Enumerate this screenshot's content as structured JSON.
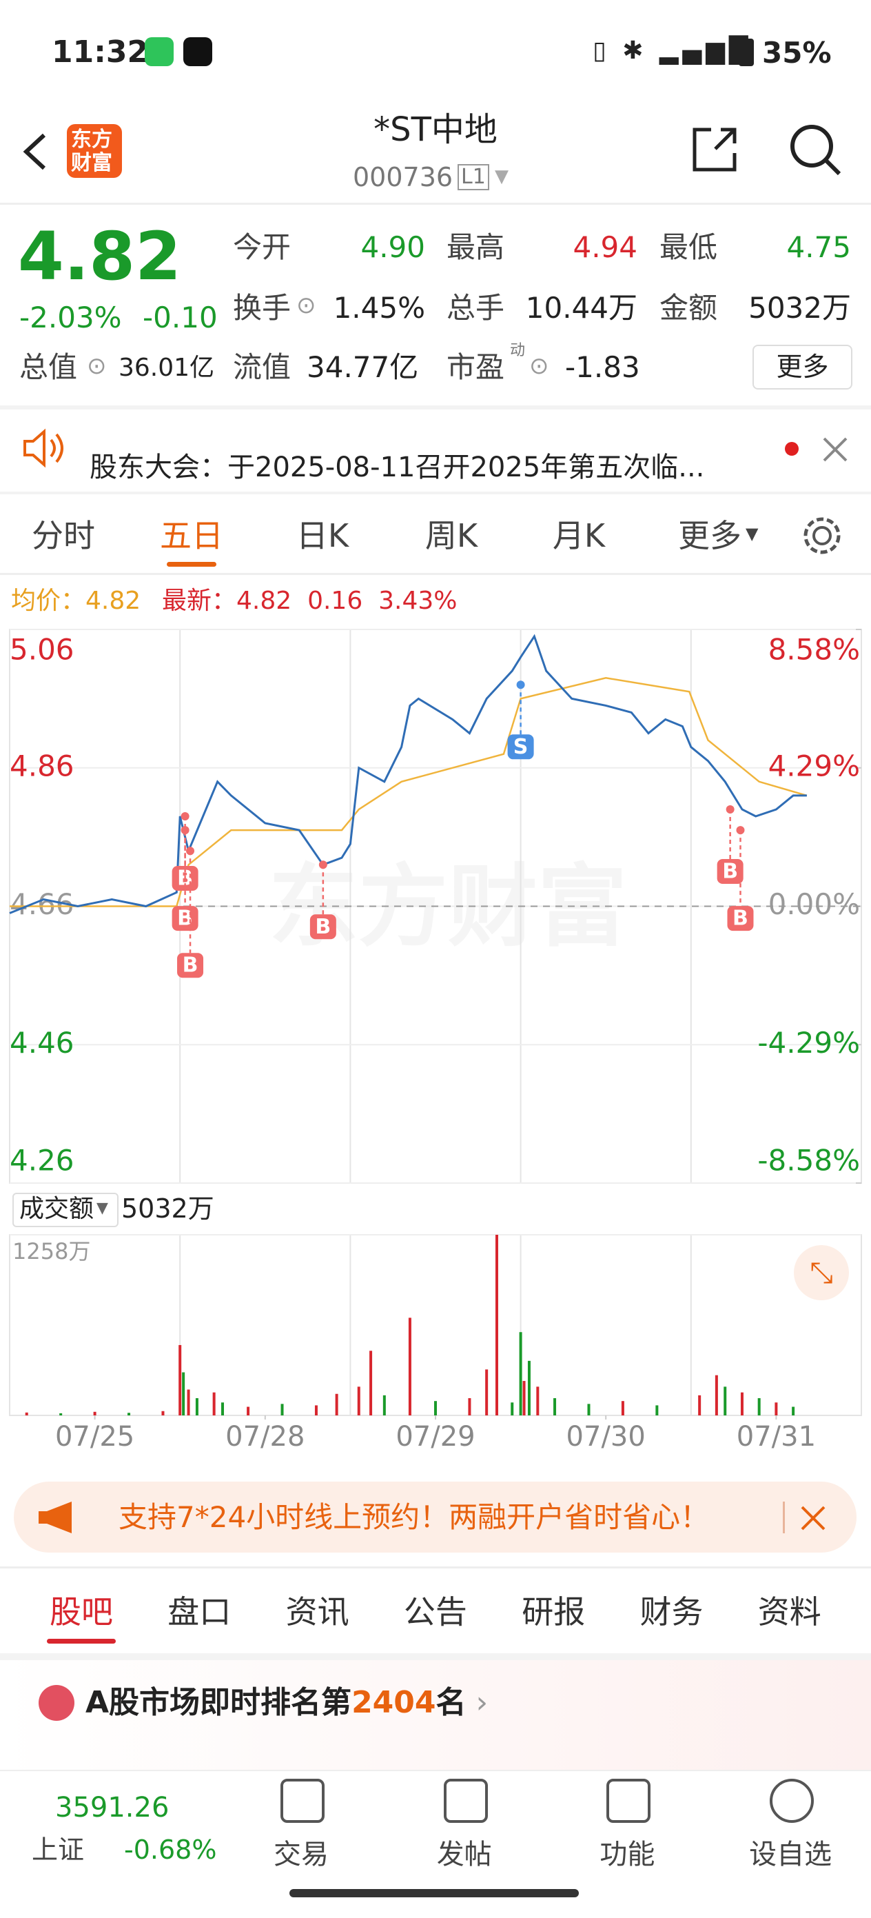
{
  "status_bar": {
    "time": "11:32",
    "battery": "35%"
  },
  "header": {
    "logo": [
      "东方",
      "财富"
    ],
    "title": "*ST中地",
    "code": "000736",
    "level": "L1"
  },
  "quote": {
    "price": "4.82",
    "change_pct": "-2.03%",
    "change": "-0.10",
    "open_label": "今开",
    "open": "4.90",
    "high_label": "最高",
    "high": "4.94",
    "low_label": "最低",
    "low": "4.75",
    "turnover_label": "换手",
    "turnover": "1.45%",
    "volume_label": "总手",
    "volume": "10.44万",
    "amount_label": "金额",
    "amount": "5032万",
    "mcap_label": "总值",
    "mcap": "36.01亿",
    "float_label": "流值",
    "float": "34.77亿",
    "pe_label": "市盈",
    "pe_sup": "动",
    "pe": "-1.83",
    "more": "更多"
  },
  "notice": {
    "text": "股东大会：于2025-08-11召开2025年第五次临..."
  },
  "period_tabs": {
    "items": [
      "分时",
      "五日",
      "日K",
      "周K",
      "月K",
      "更多"
    ],
    "active": 1
  },
  "chart_info": {
    "avg_label": "均价：",
    "avg": "4.82",
    "last_label": "最新：",
    "last": "4.82",
    "change": "0.16",
    "change_pct": "3.43%"
  },
  "watermark": "东方财富",
  "chart_data": [
    {
      "type": "line",
      "xlim": [
        0,
        5
      ],
      "ylim": [
        4.26,
        5.06
      ],
      "yticks": [
        5.06,
        4.86,
        4.66,
        4.46,
        4.26
      ],
      "y2lim": [
        -8.58,
        8.58
      ],
      "y2ticks": [
        {
          "value": 8.58,
          "label": "8.58%"
        },
        {
          "value": 4.29,
          "label": "4.29%"
        },
        {
          "value": 0,
          "label": "0.00%"
        },
        {
          "value": -4.29,
          "label": "-4.29%"
        },
        {
          "value": -8.58,
          "label": "-8.58%"
        }
      ],
      "prev_close": 4.66,
      "series": [
        {
          "color": "#2f6db5",
          "x": [
            0,
            0.2,
            0.4,
            0.6,
            0.8,
            0.98,
            1.0,
            1.05,
            1.22,
            1.3,
            1.5,
            1.7,
            1.84,
            1.95,
            2.0,
            2.05,
            2.2,
            2.3,
            2.35,
            2.4,
            2.6,
            2.7,
            2.8,
            2.95,
            3.0,
            3.08,
            3.15,
            3.3,
            3.5,
            3.65,
            3.75,
            3.85,
            3.95,
            4.0,
            4.1,
            4.2,
            4.3,
            4.38,
            4.5,
            4.6,
            4.68
          ],
          "values": [
            4.65,
            4.67,
            4.66,
            4.67,
            4.66,
            4.68,
            4.79,
            4.74,
            4.84,
            4.82,
            4.78,
            4.77,
            4.72,
            4.73,
            4.75,
            4.86,
            4.84,
            4.89,
            4.95,
            4.96,
            4.93,
            4.91,
            4.96,
            5.0,
            5.02,
            5.05,
            5.0,
            4.96,
            4.95,
            4.94,
            4.91,
            4.93,
            4.92,
            4.89,
            4.87,
            4.84,
            4.8,
            4.79,
            4.8,
            4.82,
            4.82
          ]
        },
        {
          "color": "#f0b43c",
          "x": [
            0,
            0.98,
            1.05,
            1.3,
            1.95,
            2.05,
            2.3,
            2.9,
            3.0,
            3.5,
            3.99,
            4.1,
            4.4,
            4.68
          ],
          "values": [
            4.66,
            4.66,
            4.72,
            4.77,
            4.77,
            4.8,
            4.84,
            4.88,
            4.96,
            4.99,
            4.97,
            4.9,
            4.84,
            4.82
          ]
        }
      ],
      "trades": [
        {
          "label": "B",
          "x": 1.03,
          "price": 4.79
        },
        {
          "label": "B",
          "x": 1.03,
          "price": 4.77
        },
        {
          "label": "B",
          "x": 1.06,
          "price": 4.74
        },
        {
          "label": "B",
          "x": 1.84,
          "price": 4.72
        },
        {
          "label": "S",
          "x": 3.0,
          "price": 4.98
        },
        {
          "label": "B",
          "x": 4.23,
          "price": 4.8
        },
        {
          "label": "B",
          "x": 4.29,
          "price": 4.77
        }
      ]
    },
    {
      "type": "bar",
      "label": "成交额",
      "total": "5032万",
      "xlim": [
        0,
        5
      ],
      "ylim": [
        0,
        1258
      ],
      "yticks": [
        {
          "value": 1258,
          "label": "1258万"
        }
      ],
      "xticks": [
        {
          "value": 0.5,
          "label": "07/25"
        },
        {
          "value": 1.5,
          "label": "07/28"
        },
        {
          "value": 2.5,
          "label": "07/29"
        },
        {
          "value": 3.5,
          "label": "07/30"
        },
        {
          "value": 4.5,
          "label": "07/31"
        }
      ],
      "x": [
        0.1,
        0.3,
        0.5,
        0.7,
        0.9,
        1.0,
        1.02,
        1.05,
        1.1,
        1.2,
        1.25,
        1.4,
        1.6,
        1.8,
        1.92,
        2.05,
        2.12,
        2.2,
        2.35,
        2.5,
        2.7,
        2.8,
        2.86,
        2.95,
        3.0,
        3.02,
        3.05,
        3.1,
        3.2,
        3.4,
        3.6,
        3.8,
        4.05,
        4.15,
        4.2,
        4.3,
        4.4,
        4.5,
        4.6
      ],
      "values": [
        20,
        15,
        25,
        18,
        30,
        490,
        300,
        180,
        120,
        160,
        90,
        60,
        80,
        70,
        150,
        200,
        450,
        140,
        680,
        100,
        120,
        320,
        1258,
        90,
        580,
        240,
        380,
        200,
        120,
        80,
        100,
        70,
        140,
        280,
        200,
        160,
        120,
        90,
        60
      ],
      "colors": [
        "#d8262e",
        "#1a9a2a",
        "#d8262e",
        "#1a9a2a",
        "#d8262e",
        "#d8262e",
        "#1a9a2a",
        "#d8262e",
        "#1a9a2a",
        "#d8262e",
        "#1a9a2a",
        "#d8262e",
        "#1a9a2a",
        "#d8262e",
        "#d8262e",
        "#d8262e",
        "#d8262e",
        "#1a9a2a",
        "#d8262e",
        "#1a9a2a",
        "#d8262e",
        "#d8262e",
        "#d8262e",
        "#1a9a2a",
        "#1a9a2a",
        "#d8262e",
        "#1a9a2a",
        "#d8262e",
        "#1a9a2a",
        "#1a9a2a",
        "#d8262e",
        "#1a9a2a",
        "#d8262e",
        "#d8262e",
        "#1a9a2a",
        "#d8262e",
        "#1a9a2a",
        "#d8262e",
        "#1a9a2a"
      ]
    }
  ],
  "promo": {
    "text": "支持7*24小时线上预约！两融开户省时省心！"
  },
  "bottom_tabs": {
    "items": [
      "股吧",
      "盘口",
      "资讯",
      "公告",
      "研报",
      "财务",
      "资料"
    ],
    "active": 0
  },
  "ranking": {
    "prefix": "A股市场即时排名第",
    "rank": "2404",
    "suffix": "名"
  },
  "bottom_nav": {
    "index_value": "3591.26",
    "index_name": "上证",
    "index_change": "-0.68%",
    "items": [
      "交易",
      "发帖",
      "功能",
      "设自选"
    ]
  }
}
